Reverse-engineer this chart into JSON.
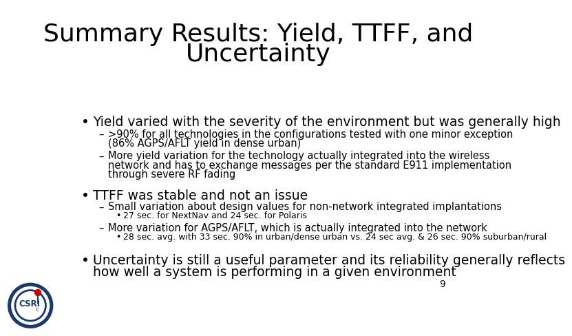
{
  "title_line1": "Summary Results: Yield, TTFF, and",
  "title_line2": "Uncertainty",
  "title_fontsize": 26,
  "title_color": "#000000",
  "bg_color": "#ffffff",
  "text_color": "#000000",
  "bullet1_main": "Yield varied with the severity of the environment but was generally high",
  "bullet1_sub1_line1": ">90% for all technologies in the configurations tested with one minor exception",
  "bullet1_sub1_line2": "(86% AGPS/AFLT yield in dense urban)",
  "bullet1_sub2_line1": "More yield variation for the technology actually integrated into the wireless",
  "bullet1_sub2_line2": "network and has to exchange messages per the standard E911 implementation",
  "bullet1_sub2_line3": "through severe RF fading",
  "bullet2_main": "TTFF was stable and not an issue",
  "bullet2_sub1": "Small variation about design values for non-network integrated implantations",
  "bullet2_sub1_sub1": "27 sec. for NextNav and 24 sec. for Polaris",
  "bullet2_sub2": "More variation for AGPS/AFLT, which is actually integrated into the network",
  "bullet2_sub2_sub1": "28 sec. avg. with 33 sec. 90% in urban/dense urban vs. 24 sec avg. & 26 sec. 90% suburban/rural",
  "bullet3_main_line1": "Uncertainty is still a useful parameter and its reliability generally reflects",
  "bullet3_main_line2": "how well a system is performing in a given environment",
  "page_number": "9",
  "main_bullet_fontsize": 13.5,
  "sub_bullet_fontsize": 10.5,
  "sub_sub_bullet_fontsize": 9.0,
  "logo_outer_color": "#1a3a6b",
  "logo_text_color": "#1a3a6b",
  "logo_red_color": "#cc0000"
}
